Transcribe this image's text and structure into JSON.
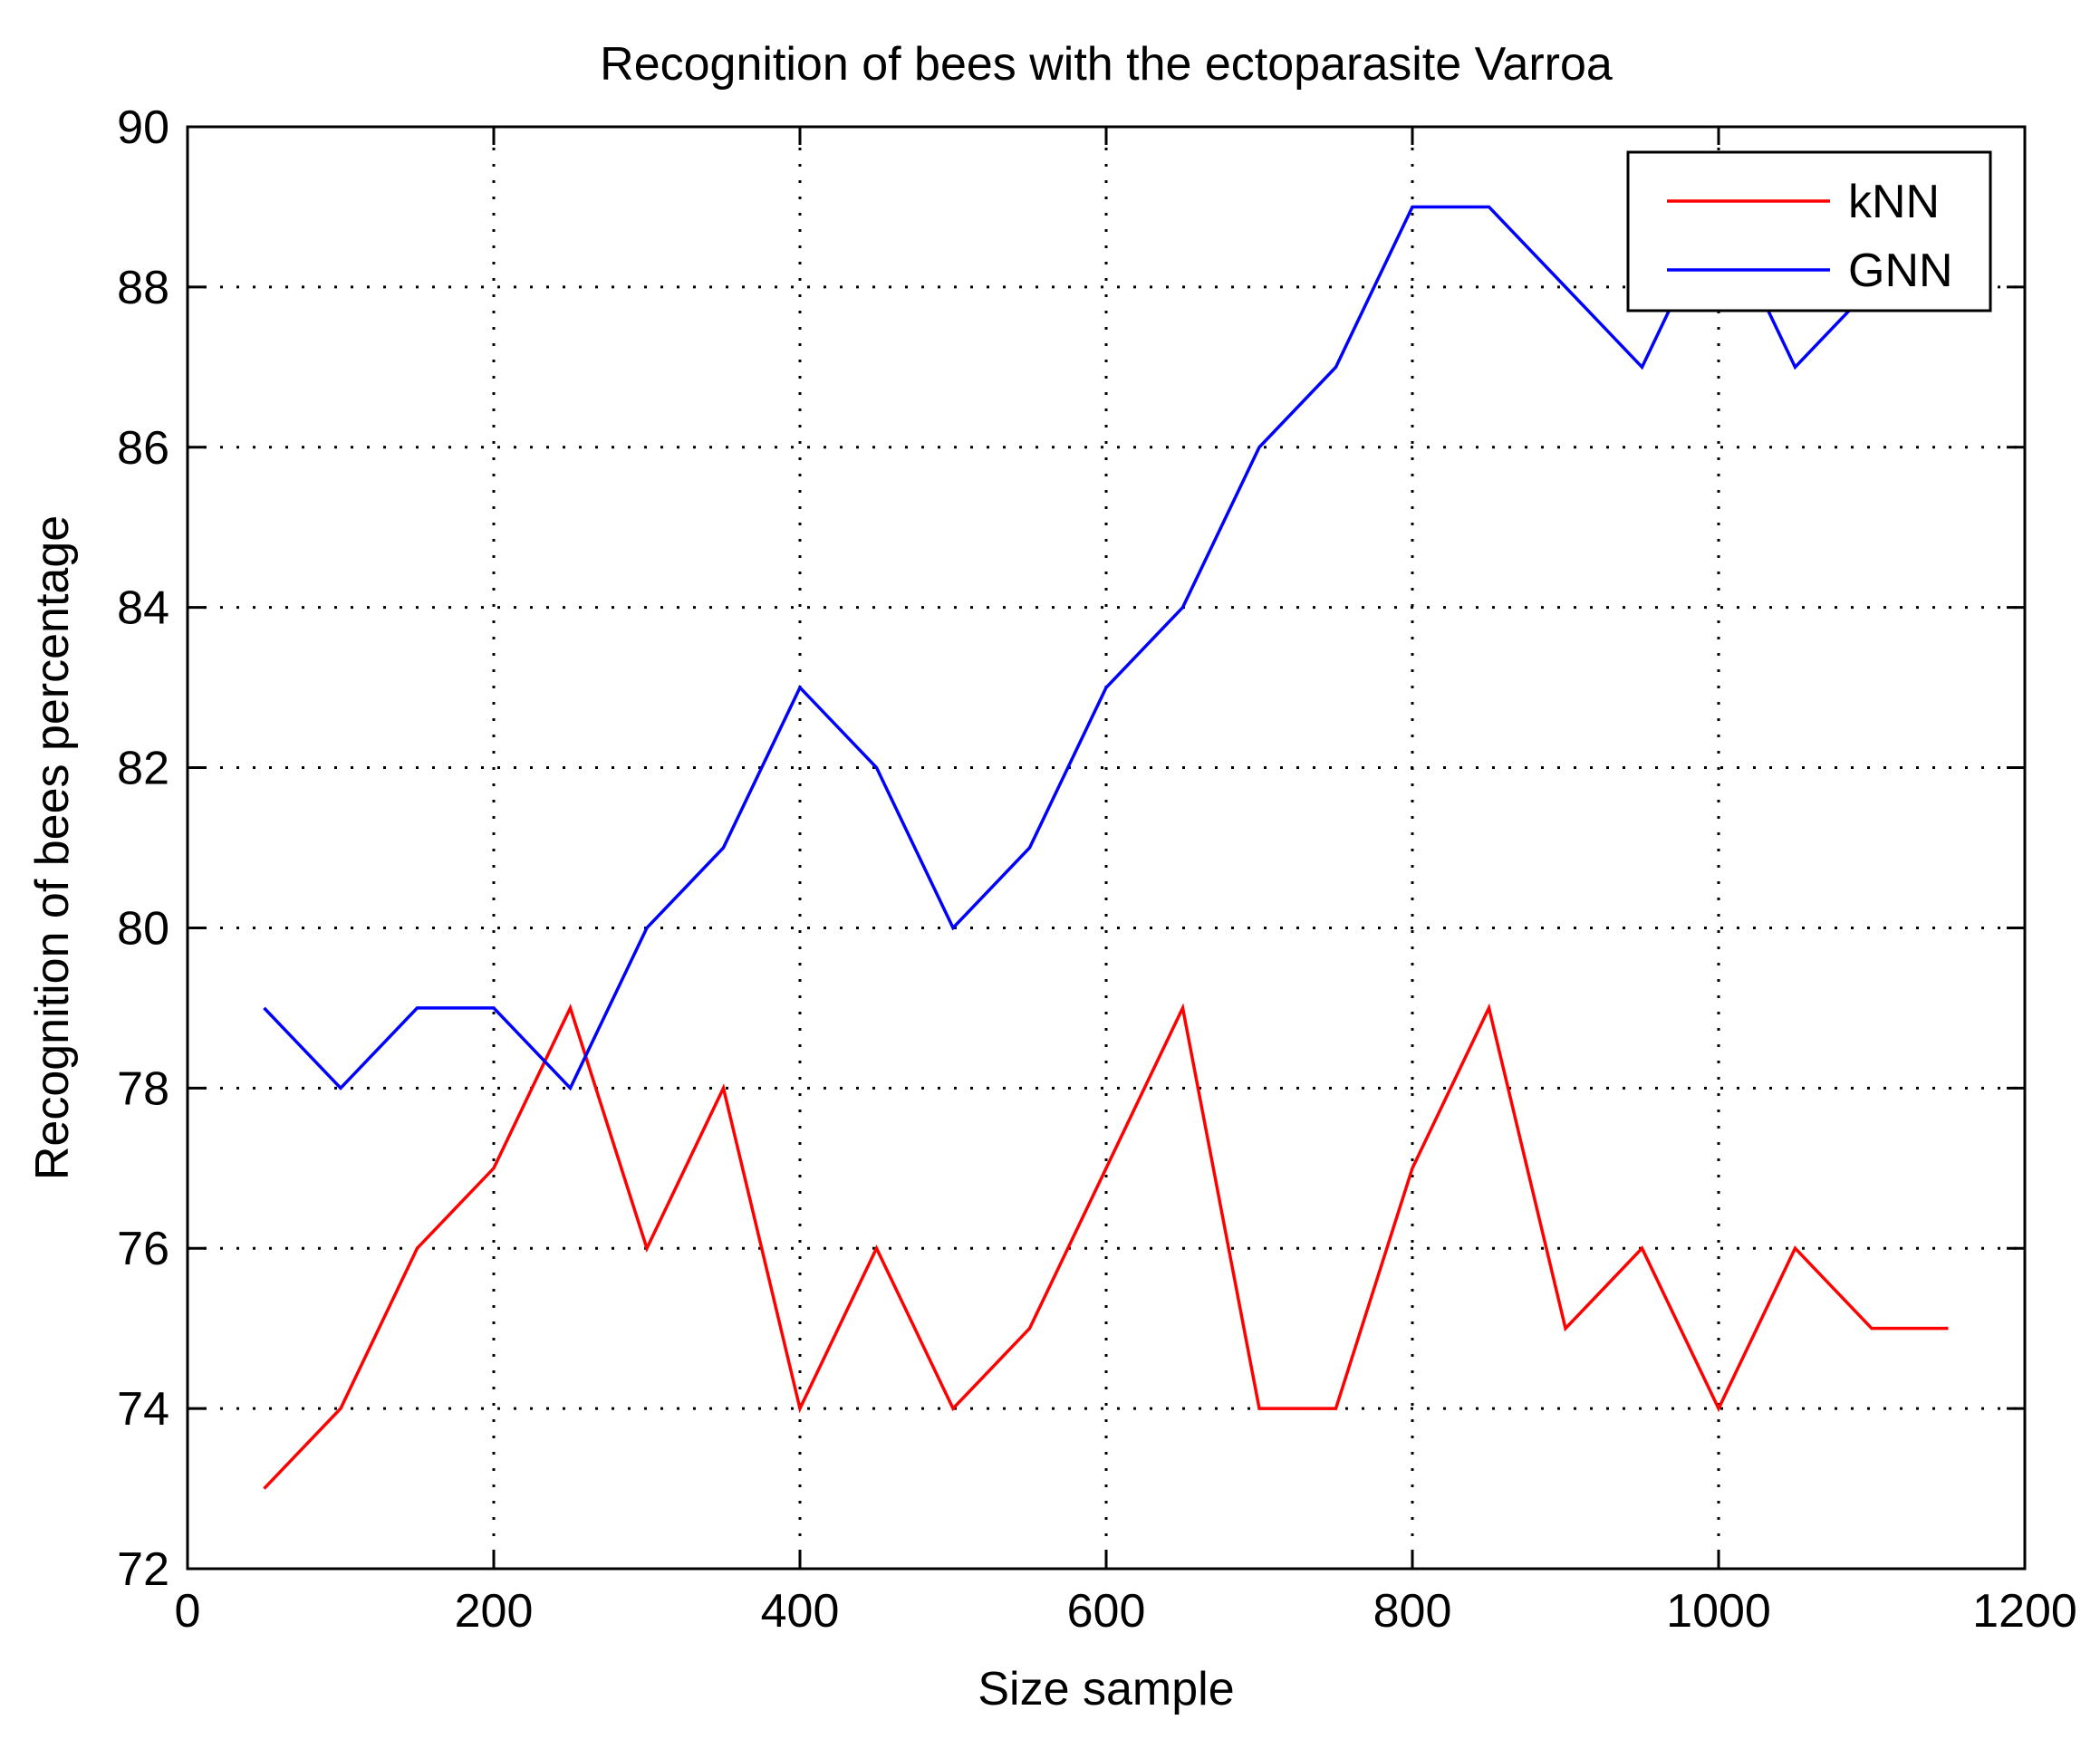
{
  "chart_data": {
    "type": "line",
    "title": "Recognition of bees with the ectoparasite Varroa",
    "xlabel": "Size sample",
    "ylabel": "Recognition of bees percentage",
    "xlim": [
      0,
      1200
    ],
    "ylim": [
      72,
      90
    ],
    "xticks": [
      0,
      200,
      400,
      600,
      800,
      1000,
      1200
    ],
    "yticks": [
      72,
      74,
      76,
      78,
      80,
      82,
      84,
      86,
      88,
      90
    ],
    "grid": true,
    "legend_position": "top-right",
    "x": [
      50,
      100,
      150,
      200,
      250,
      300,
      350,
      400,
      450,
      500,
      550,
      600,
      650,
      700,
      750,
      800,
      850,
      900,
      950,
      1000,
      1050,
      1100,
      1150
    ],
    "series": [
      {
        "name": "kNN",
        "color": "#ff0000",
        "values": [
          73,
          74,
          76,
          77,
          79,
          76,
          78,
          74,
          76,
          74,
          75,
          77,
          79,
          74,
          74,
          77,
          79,
          75,
          76,
          74,
          76,
          75,
          75
        ]
      },
      {
        "name": "GNN",
        "color": "#0000ff",
        "values": [
          79,
          78,
          79,
          79,
          78,
          80,
          81,
          83,
          82,
          80,
          81,
          83,
          84,
          86,
          87,
          89,
          89,
          88,
          87,
          89,
          87,
          88,
          88
        ]
      }
    ]
  }
}
